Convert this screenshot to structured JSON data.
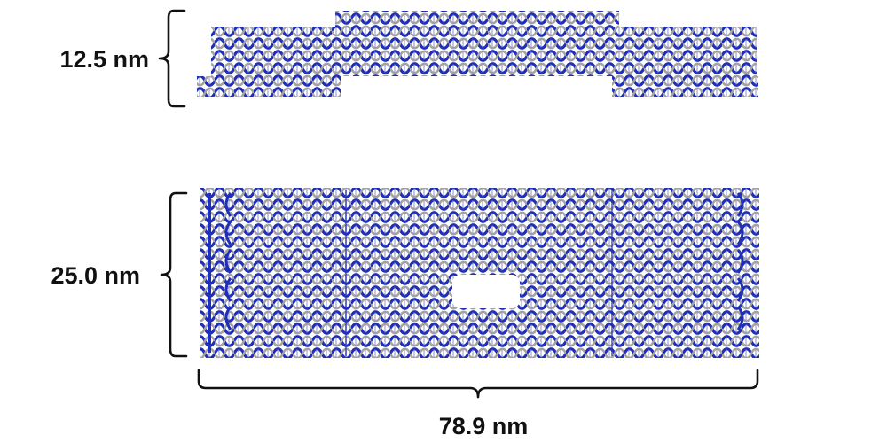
{
  "figure": {
    "side_view": {
      "height_label": "12.5 nm"
    },
    "top_view": {
      "height_label": "25.0 nm",
      "width_label": "78.9 nm"
    }
  },
  "colors": {
    "background": "#ffffff",
    "strand_dark": "#1f2fb8",
    "strand_light": "#9a9a9a",
    "bracket": "#111111"
  }
}
